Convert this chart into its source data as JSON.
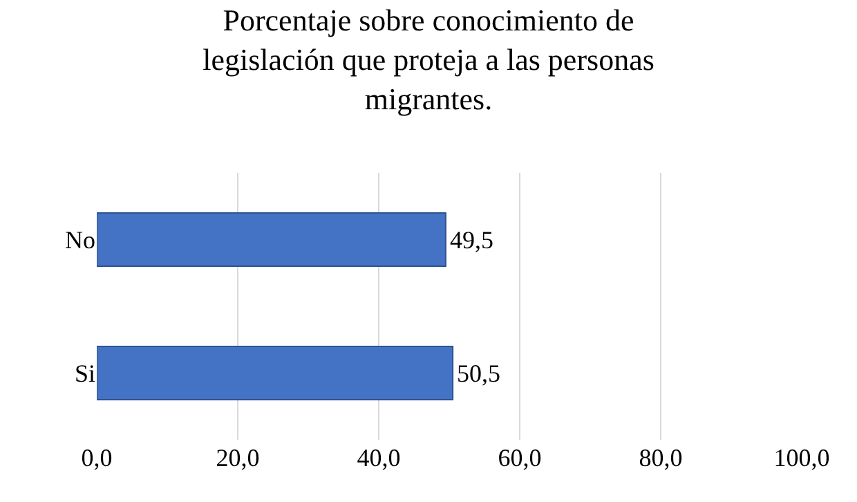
{
  "chart_data": {
    "type": "bar",
    "orientation": "horizontal",
    "title": "Porcentaje sobre conocimiento de\nlegislación que proteja a las personas\nmigrantes.",
    "categories": [
      "No",
      "Si"
    ],
    "values": [
      49.5,
      50.5
    ],
    "value_labels": [
      "49,5",
      "50,5"
    ],
    "color": "#4472c4",
    "xlim": [
      0,
      100
    ],
    "xticks": [
      {
        "value": 0,
        "label": "0,0"
      },
      {
        "value": 20,
        "label": "20,0"
      },
      {
        "value": 40,
        "label": "40,0"
      },
      {
        "value": 60,
        "label": "60,0"
      },
      {
        "value": 80,
        "label": "80,0"
      },
      {
        "value": 100,
        "label": "100,0"
      }
    ],
    "grid": "x",
    "legend": false
  }
}
